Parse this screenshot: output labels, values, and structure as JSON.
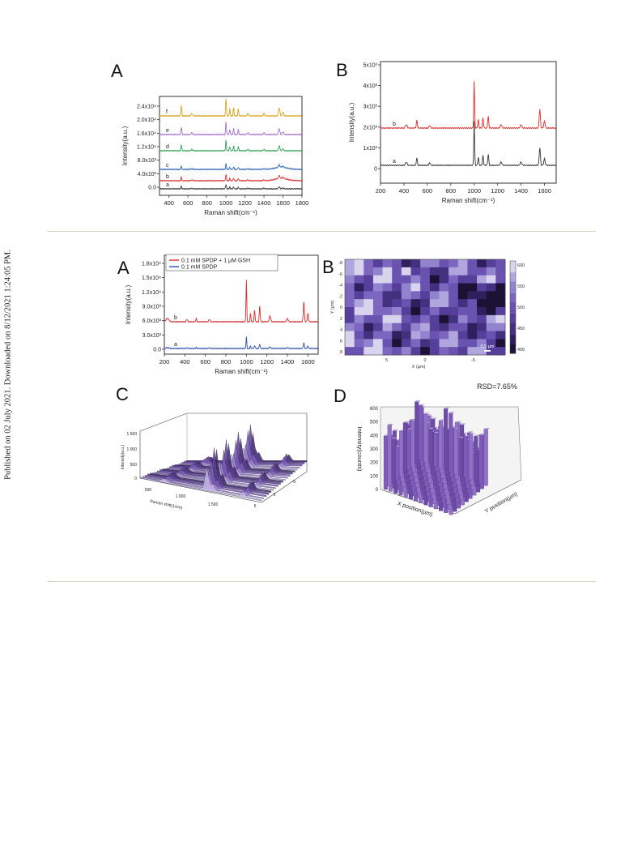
{
  "sidebar_text": "Published on 02 July 2021. Downloaded on 8/12/2021 1:24:05 PM.",
  "figure_top": {
    "panel_A": {
      "letter": "A",
      "chart_data": {
        "type": "line",
        "xlabel": "Raman shift(cm⁻¹)",
        "ylabel": "Intensity(a.u.)",
        "xlim": [
          300,
          1800
        ],
        "x_ticks": [
          "400",
          "600",
          "800",
          "1000",
          "1200",
          "1400",
          "1600",
          "1800"
        ],
        "y_ticks": [
          "0.0",
          "4.0x10³",
          "8.0x10³",
          "1.2x10⁴",
          "1.6x10⁴",
          "2.0x10⁴",
          "2.4x10⁴"
        ],
        "series": [
          {
            "label": "a",
            "color": "#3a3a3a"
          },
          {
            "label": "b",
            "color": "#e03030"
          },
          {
            "label": "c",
            "color": "#2e63b8"
          },
          {
            "label": "d",
            "color": "#2ea35a"
          },
          {
            "label": "e",
            "color": "#a66fd0"
          },
          {
            "label": "f",
            "color": "#d9a31d"
          }
        ]
      }
    },
    "panel_B": {
      "letter": "B",
      "chart_data": {
        "type": "line",
        "xlabel": "Raman shift(cm⁻¹)",
        "ylabel": "Intensity(a.u.)",
        "xlim": [
          200,
          1700
        ],
        "x_ticks": [
          "200",
          "400",
          "600",
          "800",
          "1000",
          "1200",
          "1400",
          "1600"
        ],
        "y_ticks": [
          "0",
          "1x10³",
          "2x10³",
          "3x10³",
          "4x10³",
          "5x10³"
        ],
        "series": [
          {
            "label": "a",
            "color": "#333333"
          },
          {
            "label": "b",
            "color": "#e02a2a"
          }
        ]
      }
    }
  },
  "figure_bottom": {
    "panel_A": {
      "letter": "A",
      "chart_data": {
        "type": "line",
        "xlabel": "Raman shift(cm⁻¹)",
        "ylabel": "Intensity(a.u.)",
        "xlim": [
          200,
          1700
        ],
        "x_ticks": [
          "200",
          "400",
          "600",
          "800",
          "1000",
          "1200",
          "1400",
          "1600"
        ],
        "y_ticks": [
          "0.0",
          "3.0x10³",
          "6.0x10³",
          "9.0x10³",
          "1.2x10⁴",
          "1.5x10⁴",
          "1.8x10⁴"
        ],
        "series": [
          {
            "name": "0.1 mM SPDP + 1 μM GSH",
            "label": "b",
            "color": "#e02a2a"
          },
          {
            "name": "0.1 mM SPDP",
            "label": "a",
            "color": "#2f4fae"
          }
        ]
      }
    },
    "panel_B": {
      "letter": "B",
      "chart_data": {
        "type": "heatmap",
        "ylabel": "Y (µm)",
        "xlabel": "X (µm)",
        "y_ticks": [
          "-8",
          "-6",
          "-4",
          "-2",
          "0",
          "2",
          "4",
          "6",
          "8"
        ],
        "x_ticks": [
          "5",
          "0",
          "-5"
        ],
        "colorbar_ticks": [
          "600",
          "550",
          "500",
          "450",
          "400"
        ],
        "scale_bar": "0.5 µm"
      }
    },
    "panel_C": {
      "letter": "C",
      "chart_data": {
        "type": "area",
        "zlabel": "Intensity(a.u.)",
        "xlabel": "Raman shift(1/cm)",
        "z_ticks": [
          "1 500",
          "1 000",
          "500",
          "0"
        ],
        "x_ticks": [
          "500",
          "1 000",
          "1 500"
        ],
        "y_ticks": [
          "5",
          "0",
          "-5"
        ]
      }
    },
    "panel_D": {
      "letter": "D",
      "chart_data": {
        "type": "bar",
        "annotation": "RSD=7.65%",
        "zlabel": "Intensity(counts)",
        "xlabel": "X position(µm)",
        "ylabel": "Y position(µm)",
        "z_ticks": [
          "0",
          "100",
          "200",
          "300",
          "400",
          "500",
          "600"
        ]
      }
    }
  }
}
